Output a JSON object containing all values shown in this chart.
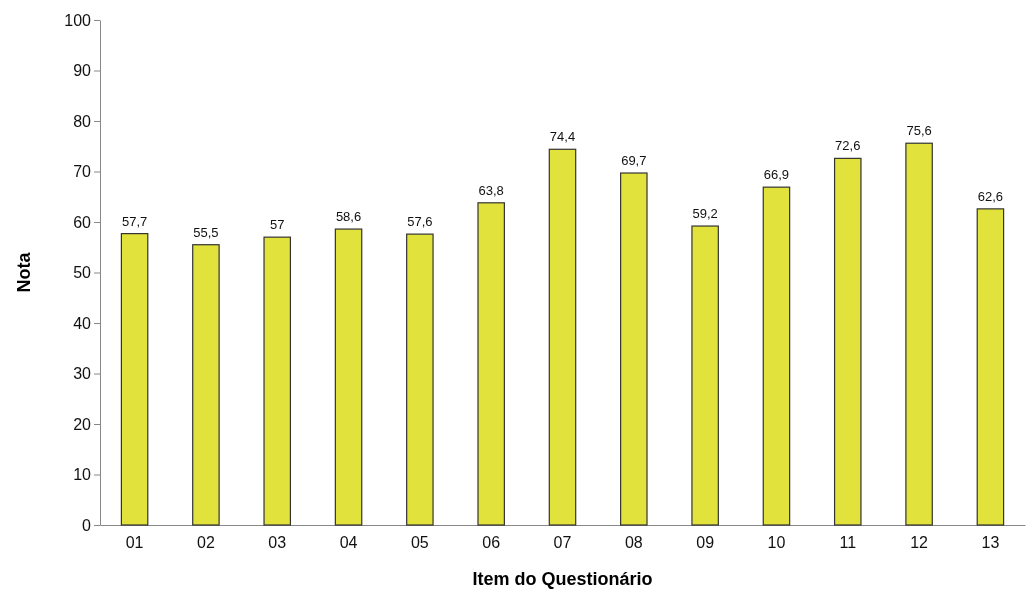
{
  "chart_data": {
    "type": "bar",
    "xlabel": "Item do Questionário",
    "ylabel": "Nota",
    "categories": [
      "01",
      "02",
      "03",
      "04",
      "05",
      "06",
      "07",
      "08",
      "09",
      "10",
      "11",
      "12",
      "13"
    ],
    "values": [
      57.7,
      55.5,
      57,
      58.6,
      57.6,
      63.8,
      74.4,
      69.7,
      59.2,
      66.9,
      72.6,
      75.6,
      62.6
    ],
    "value_labels": [
      "57,7",
      "55,5",
      "57",
      "58,6",
      "57,6",
      "63,8",
      "74,4",
      "69,7",
      "59,2",
      "66,9",
      "72,6",
      "75,6",
      "62,6"
    ],
    "color": "#e2e23c",
    "ylim": [
      0,
      100
    ],
    "yticks": [
      0,
      10,
      20,
      30,
      40,
      50,
      60,
      70,
      80,
      90,
      100
    ],
    "grid": false
  }
}
